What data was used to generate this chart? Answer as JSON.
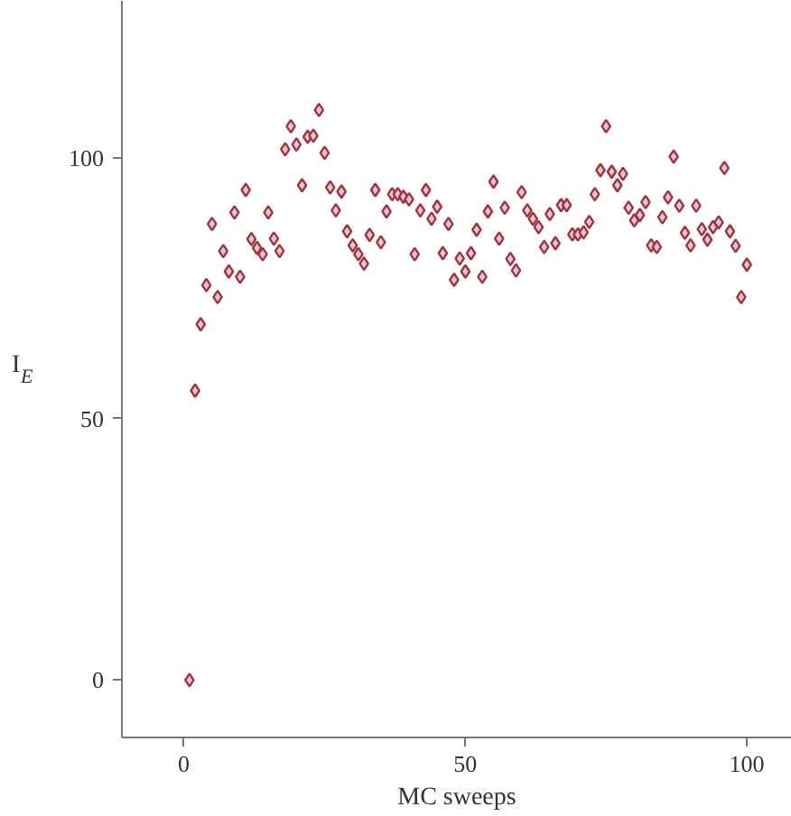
{
  "chart_data": {
    "type": "scatter",
    "xlabel": "MC sweeps",
    "ylabel": "I$_{E}$",
    "marker": "diamond",
    "grid": false,
    "xlim": [
      -11,
      108
    ],
    "ylim": [
      -11,
      130
    ],
    "xticks": [
      0,
      50,
      100
    ],
    "yticks": [
      0,
      50,
      100
    ],
    "series": [
      {
        "color": "#a0333f",
        "x": [
          1,
          2,
          3,
          4,
          5,
          6,
          7,
          8,
          9,
          10,
          11,
          12,
          13,
          14,
          15,
          16,
          17,
          18,
          19,
          20,
          21,
          22,
          23,
          24,
          25,
          26,
          27,
          28,
          29,
          30,
          31,
          32,
          33,
          34,
          35,
          36,
          37,
          38,
          39,
          40,
          41,
          42,
          43,
          44,
          45,
          46,
          47,
          48,
          49,
          50,
          51,
          52,
          53,
          54,
          55,
          56,
          57,
          58,
          59,
          60,
          61,
          62,
          63,
          64,
          65,
          66,
          67,
          68,
          69,
          70,
          71,
          72,
          73,
          74,
          75,
          76,
          77,
          78,
          79,
          80,
          81,
          82,
          83,
          84,
          85,
          86,
          87,
          88,
          89,
          90,
          91,
          92,
          93,
          94,
          95,
          96,
          97,
          98,
          99,
          100
        ],
        "values": [
          0,
          55.4,
          68.1,
          75.6,
          87.3,
          73.3,
          82.1,
          78.2,
          89.5,
          77.2,
          93.8,
          84.4,
          82.7,
          81.5,
          89.5,
          84.5,
          82.1,
          101.6,
          106,
          102.5,
          94.7,
          104,
          104.2,
          109.1,
          100.9,
          94.3,
          89.9,
          93.5,
          85.9,
          83.2,
          81.5,
          79.7,
          85.2,
          93.8,
          83.8,
          89.7,
          93,
          93,
          92.5,
          92,
          81.5,
          89.9,
          93.8,
          88.3,
          90.6,
          81.7,
          87.3,
          76.6,
          80.7,
          78.2,
          81.7,
          86.2,
          77.2,
          89.7,
          95.4,
          84.5,
          90.4,
          80.6,
          78.4,
          93.4,
          89.9,
          88.3,
          86.7,
          82.9,
          89.2,
          83.6,
          90.9,
          90.9,
          85.3,
          85.3,
          85.7,
          87.7,
          93,
          97.6,
          106,
          97.3,
          94.7,
          96.9,
          90.4,
          88,
          89,
          91.5,
          83.2,
          82.9,
          88.6,
          92.4,
          100.2,
          90.8,
          85.6,
          83.2,
          90.8,
          86.3,
          84.3,
          86.7,
          87.6,
          98,
          85.9,
          83.1,
          73.3,
          79.5
        ]
      }
    ]
  }
}
